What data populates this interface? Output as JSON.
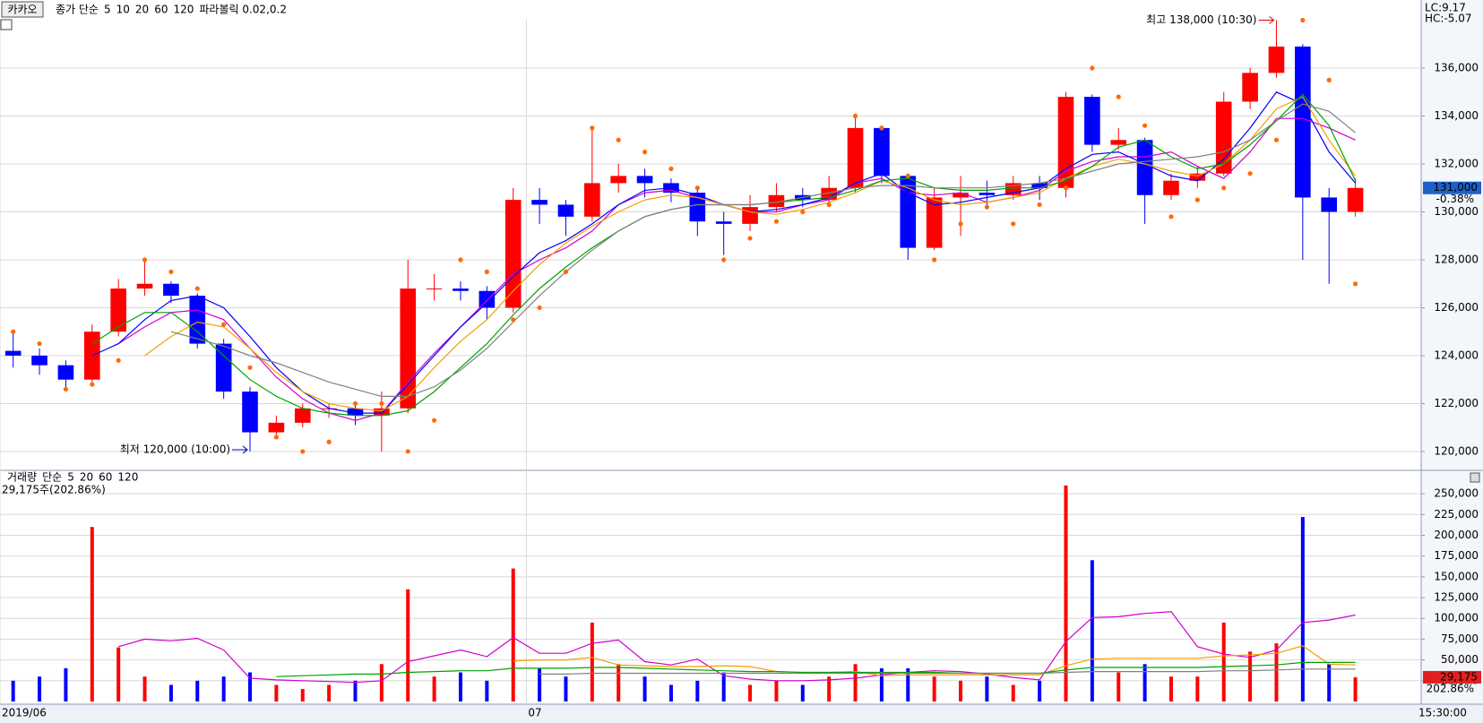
{
  "chart_data": [
    {
      "type": "candlestick",
      "title": "카카오",
      "ma_prefix": "종가 단순",
      "categories": [
        "2019/06",
        null,
        null,
        null,
        null,
        null,
        null,
        null,
        null,
        null,
        null,
        null,
        null,
        null,
        null,
        null,
        null,
        null,
        null,
        null,
        "07",
        null,
        null,
        null,
        null,
        null,
        null,
        null,
        null,
        null,
        null,
        null,
        null,
        null,
        null,
        null,
        null,
        null,
        null,
        null,
        null,
        null,
        null,
        null,
        null,
        null,
        null,
        null,
        null,
        null,
        null,
        null
      ],
      "open": [
        124200,
        124000,
        123600,
        123000,
        125000,
        126800,
        127000,
        126500,
        124500,
        122500,
        120800,
        121200,
        121800,
        121800,
        121500,
        121800,
        126800,
        126800,
        126700,
        126000,
        130500,
        130300,
        129800,
        131200,
        131500,
        131200,
        130800,
        129600,
        129500,
        130200,
        130700,
        130500,
        131000,
        133500,
        131500,
        128500,
        130600,
        130800,
        130700,
        131200,
        131000,
        134800,
        132800,
        133000,
        130700,
        131300,
        131600,
        134600,
        135800,
        136900,
        130600,
        130000
      ],
      "high": [
        125000,
        124300,
        123800,
        125300,
        127200,
        128000,
        127100,
        126600,
        124700,
        122700,
        121500,
        122000,
        122000,
        122000,
        122500,
        128000,
        127400,
        127100,
        126900,
        131000,
        131000,
        130500,
        133500,
        132000,
        131800,
        131400,
        131000,
        130000,
        130700,
        131200,
        131000,
        131500,
        134000,
        133600,
        131600,
        131000,
        131500,
        131300,
        131500,
        131500,
        135000,
        134900,
        133500,
        133100,
        131600,
        131900,
        135000,
        136000,
        138000,
        137000,
        131000,
        131400
      ],
      "low": [
        123500,
        123200,
        122600,
        122900,
        124800,
        126500,
        126200,
        124300,
        122200,
        120000,
        120600,
        121000,
        121400,
        121100,
        120000,
        121600,
        126300,
        126300,
        125500,
        125800,
        129500,
        129000,
        129600,
        130800,
        130600,
        130400,
        129000,
        128200,
        129200,
        130000,
        130200,
        130200,
        130800,
        131200,
        128000,
        128400,
        129000,
        130300,
        130500,
        130500,
        130600,
        132500,
        132600,
        129500,
        130500,
        131000,
        131500,
        134300,
        135600,
        128000,
        127000,
        129800
      ],
      "close": [
        124000,
        123600,
        123000,
        125000,
        126800,
        127000,
        126500,
        124500,
        122500,
        120800,
        121200,
        121800,
        121800,
        121500,
        121800,
        126800,
        126800,
        126700,
        126000,
        130500,
        130300,
        129800,
        131200,
        131500,
        131200,
        130800,
        129600,
        129500,
        130200,
        130700,
        130500,
        131000,
        133500,
        131500,
        128500,
        130600,
        130800,
        130700,
        131200,
        131000,
        134800,
        132800,
        133000,
        130700,
        131300,
        131600,
        134600,
        135800,
        136900,
        130600,
        130000,
        131000
      ],
      "up_color": "#ff0000",
      "down_color": "#0000ff",
      "series": [
        {
          "name": "5",
          "color": "#d000d0",
          "values": [
            null,
            null,
            null,
            null,
            124500,
            125200,
            125800,
            125900,
            125500,
            124300,
            123100,
            122200,
            121600,
            121300,
            121600,
            122900,
            124100,
            125200,
            126300,
            127400,
            128000,
            128500,
            129200,
            130300,
            130800,
            130900,
            130600,
            130300,
            130000,
            130000,
            130300,
            130500,
            131200,
            131400,
            130800,
            130700,
            130800,
            130400,
            130600,
            130900,
            131700,
            132100,
            132300,
            132300,
            132500,
            131900,
            131400,
            132500,
            133900,
            133900,
            133500,
            133000
          ]
        },
        {
          "name": "10",
          "color": "#0000ff",
          "values": [
            null,
            null,
            null,
            124000,
            124500,
            125500,
            126300,
            126500,
            126000,
            124800,
            123500,
            122500,
            121800,
            121600,
            121600,
            122800,
            124000,
            125200,
            126200,
            127300,
            128300,
            128800,
            129500,
            130300,
            130900,
            131000,
            130700,
            130300,
            130000,
            130100,
            130300,
            130600,
            131200,
            131600,
            130800,
            130300,
            130400,
            130600,
            130800,
            131000,
            131800,
            132400,
            132500,
            132000,
            131500,
            131300,
            132200,
            133500,
            135000,
            134500,
            132500,
            131200
          ]
        },
        {
          "name": "20",
          "color": "#f0a000",
          "values": [
            null,
            null,
            null,
            null,
            null,
            124000,
            124800,
            125400,
            125200,
            124300,
            123300,
            122500,
            122000,
            121800,
            121700,
            122300,
            123500,
            124600,
            125500,
            126700,
            127800,
            128700,
            129400,
            130000,
            130500,
            130700,
            130600,
            130300,
            130000,
            129900,
            130100,
            130400,
            130800,
            131300,
            131000,
            130500,
            130300,
            130400,
            130600,
            130800,
            131400,
            131900,
            132200,
            132000,
            131700,
            131500,
            132000,
            133000,
            134300,
            134800,
            133000,
            131500
          ]
        },
        {
          "name": "60",
          "color": "#00a000",
          "values": [
            null,
            null,
            null,
            124500,
            125200,
            125800,
            125800,
            125000,
            124000,
            123000,
            122300,
            121800,
            121600,
            121500,
            121500,
            121700,
            122500,
            123500,
            124500,
            125700,
            126800,
            127700,
            128500,
            129200,
            129800,
            130100,
            130300,
            130300,
            130300,
            130400,
            130500,
            130600,
            130900,
            131300,
            131400,
            131000,
            130900,
            130900,
            131000,
            131000,
            131300,
            131900,
            132700,
            133000,
            132300,
            131800,
            132000,
            132800,
            133800,
            134900,
            133600,
            131300
          ]
        },
        {
          "name": "120",
          "color": "#808080",
          "values": [
            null,
            null,
            null,
            null,
            null,
            null,
            125000,
            124700,
            124400,
            124000,
            123700,
            123300,
            122900,
            122600,
            122300,
            122300,
            122700,
            123400,
            124300,
            125400,
            126500,
            127500,
            128400,
            129200,
            129800,
            130100,
            130300,
            130300,
            130300,
            130400,
            130600,
            130800,
            131000,
            131100,
            131100,
            131000,
            131000,
            131000,
            131100,
            131200,
            131400,
            131700,
            132000,
            132100,
            132200,
            132300,
            132500,
            133000,
            133800,
            134500,
            134200,
            133300
          ]
        }
      ],
      "sar": {
        "name": "파라볼릭 0.02,0.2",
        "color": "#ff6a00",
        "values": [
          125000,
          124500,
          122600,
          122800,
          123800,
          128000,
          127500,
          126800,
          125300,
          123500,
          120600,
          120000,
          120400,
          122000,
          122000,
          120000,
          121300,
          128000,
          127500,
          125500,
          126000,
          127500,
          133500,
          133000,
          132500,
          131800,
          131000,
          128000,
          128900,
          129600,
          130000,
          130300,
          134000,
          133500,
          131500,
          128000,
          129500,
          130200,
          129500,
          130300,
          131000,
          136000,
          134800,
          133600,
          129800,
          130500,
          131000,
          131600,
          133000,
          138000,
          135500,
          127000
        ]
      },
      "ylim": [
        119250,
        138020
      ],
      "yticks": [
        {
          "value": 120000,
          "label": "120,000"
        },
        {
          "value": 122000,
          "label": "122,000"
        },
        {
          "value": 124000,
          "label": "124,000"
        },
        {
          "value": 126000,
          "label": "126,000"
        },
        {
          "value": 128000,
          "label": "128,000"
        },
        {
          "value": 130000,
          "label": "130,000"
        },
        {
          "value": 132000,
          "label": "132,000"
        },
        {
          "value": 134000,
          "label": "134,000"
        },
        {
          "value": 136000,
          "label": "136,000"
        }
      ],
      "grid": true,
      "annotations": {
        "high": "최고 138,000 (10:30)",
        "low": "최저 120,000 (10:00)"
      },
      "lc": "LC:9.17",
      "hc": "HC:-5.07",
      "current": {
        "value": 131000,
        "label": "131,000"
      },
      "change": "-0.38%"
    },
    {
      "type": "bar",
      "title": "거래량",
      "ma_prefix": "단순",
      "info": "29,175주(202.86%)",
      "values": [
        25000,
        30000,
        40000,
        210000,
        65000,
        30000,
        20000,
        25000,
        30000,
        35000,
        20000,
        15000,
        20000,
        25000,
        45000,
        135000,
        30000,
        35000,
        25000,
        160000,
        40000,
        30000,
        95000,
        45000,
        30000,
        20000,
        25000,
        35000,
        20000,
        25000,
        20000,
        30000,
        45000,
        40000,
        40000,
        30000,
        25000,
        30000,
        20000,
        25000,
        260000,
        170000,
        35000,
        45000,
        30000,
        30000,
        95000,
        60000,
        70000,
        222000,
        45000,
        29175
      ],
      "color": "#ff0000",
      "series": [
        {
          "name": "5",
          "color": "#d000d0",
          "values": [
            null,
            null,
            null,
            null,
            66000,
            75000,
            73000,
            76000,
            62000,
            28000,
            26000,
            25000,
            24000,
            23000,
            25000,
            48000,
            55000,
            62000,
            54000,
            77000,
            58000,
            58000,
            70000,
            74000,
            48000,
            44000,
            51000,
            31000,
            27000,
            25000,
            25000,
            26000,
            28000,
            32000,
            35000,
            37000,
            36000,
            33000,
            29000,
            26000,
            72000,
            101000,
            102000,
            106000,
            108000,
            66000,
            57000,
            53000,
            62000,
            95000,
            98000,
            104000
          ]
        },
        {
          "name": "20",
          "color": "#f0a000",
          "values": [
            null,
            null,
            null,
            null,
            null,
            null,
            null,
            null,
            null,
            null,
            null,
            null,
            null,
            null,
            null,
            null,
            null,
            null,
            null,
            49000,
            50000,
            50000,
            53000,
            44000,
            43000,
            42000,
            42000,
            43000,
            42000,
            36000,
            35000,
            35000,
            36000,
            31000,
            32000,
            32000,
            32000,
            32000,
            32000,
            32000,
            43000,
            51000,
            52000,
            52000,
            52000,
            52000,
            55000,
            56000,
            58000,
            67000,
            45000,
            44000
          ]
        },
        {
          "name": "60",
          "color": "#00a000",
          "values": [
            null,
            null,
            null,
            null,
            null,
            null,
            null,
            null,
            null,
            null,
            30000,
            31000,
            32000,
            33000,
            33000,
            35000,
            36000,
            37000,
            37000,
            40000,
            40000,
            40000,
            41000,
            41000,
            40000,
            39000,
            38000,
            37000,
            36000,
            36000,
            35000,
            35000,
            35000,
            35000,
            35000,
            35000,
            34000,
            34000,
            34000,
            34000,
            38000,
            41000,
            41000,
            41000,
            41000,
            41000,
            42000,
            43000,
            44000,
            47000,
            47000,
            47000
          ]
        },
        {
          "name": "120",
          "color": "#808080",
          "values": [
            null,
            null,
            null,
            null,
            null,
            null,
            null,
            null,
            null,
            null,
            null,
            null,
            null,
            null,
            null,
            null,
            null,
            null,
            null,
            null,
            33000,
            33000,
            34000,
            34000,
            34000,
            34000,
            34000,
            34000,
            34000,
            34000,
            34000,
            34000,
            34000,
            34000,
            34000,
            34000,
            34000,
            34000,
            34000,
            34000,
            35000,
            36000,
            36000,
            36000,
            36000,
            36000,
            37000,
            37000,
            38000,
            39000,
            39000,
            39000
          ]
        }
      ],
      "ylim": [
        0,
        276000
      ],
      "yticks": [
        {
          "value": 25000,
          "label": "25,000"
        },
        {
          "value": 50000,
          "label": "50,000"
        },
        {
          "value": 75000,
          "label": "75,000"
        },
        {
          "value": 100000,
          "label": "100,000"
        },
        {
          "value": 125000,
          "label": "125,000"
        },
        {
          "value": 150000,
          "label": "150,000"
        },
        {
          "value": 175000,
          "label": "175,000"
        },
        {
          "value": 200000,
          "label": "200,000"
        },
        {
          "value": 225000,
          "label": "225,000"
        },
        {
          "value": 250000,
          "label": "250,000"
        }
      ],
      "grid": true,
      "current": {
        "value": 29175,
        "label": "29,175"
      },
      "ratio": "202.86%",
      "time": "15:30:00"
    }
  ]
}
